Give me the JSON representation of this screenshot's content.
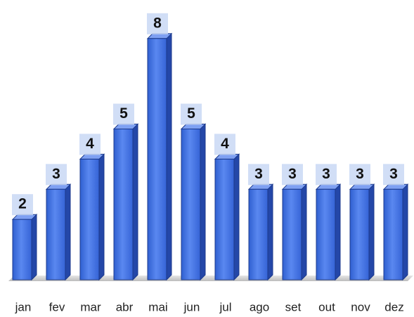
{
  "chart_data": {
    "type": "bar3d",
    "categories": [
      "jan",
      "fev",
      "mar",
      "abr",
      "mai",
      "jun",
      "jul",
      "ago",
      "set",
      "out",
      "nov",
      "dez"
    ],
    "values": [
      2,
      3,
      4,
      5,
      8,
      5,
      4,
      3,
      3,
      3,
      3,
      3
    ],
    "color": "#3d6ee0"
  }
}
